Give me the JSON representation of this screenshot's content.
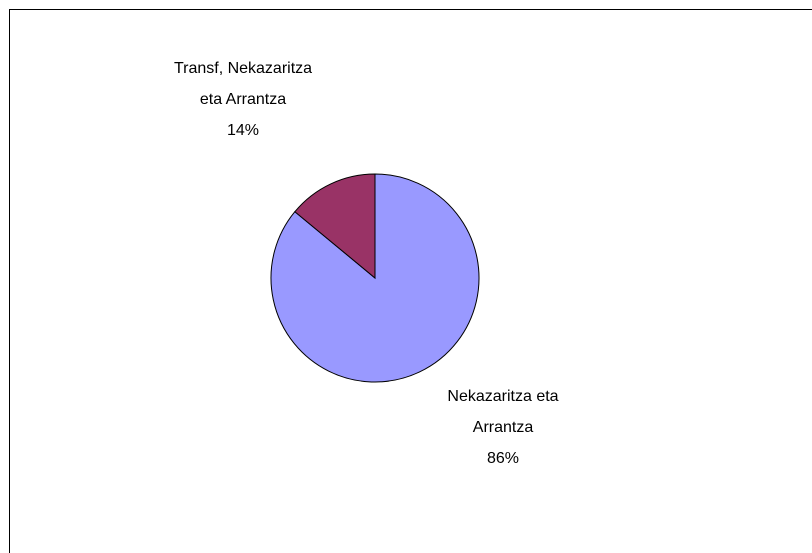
{
  "chart_data": {
    "type": "pie",
    "categories": [
      "Nekazaritza eta Arrantza",
      "Transf, Nekazaritza eta Arrantza"
    ],
    "values": [
      86,
      14
    ],
    "value_labels": [
      "86%",
      "14%"
    ],
    "colors": [
      "#9999ff",
      "#993366"
    ]
  }
}
